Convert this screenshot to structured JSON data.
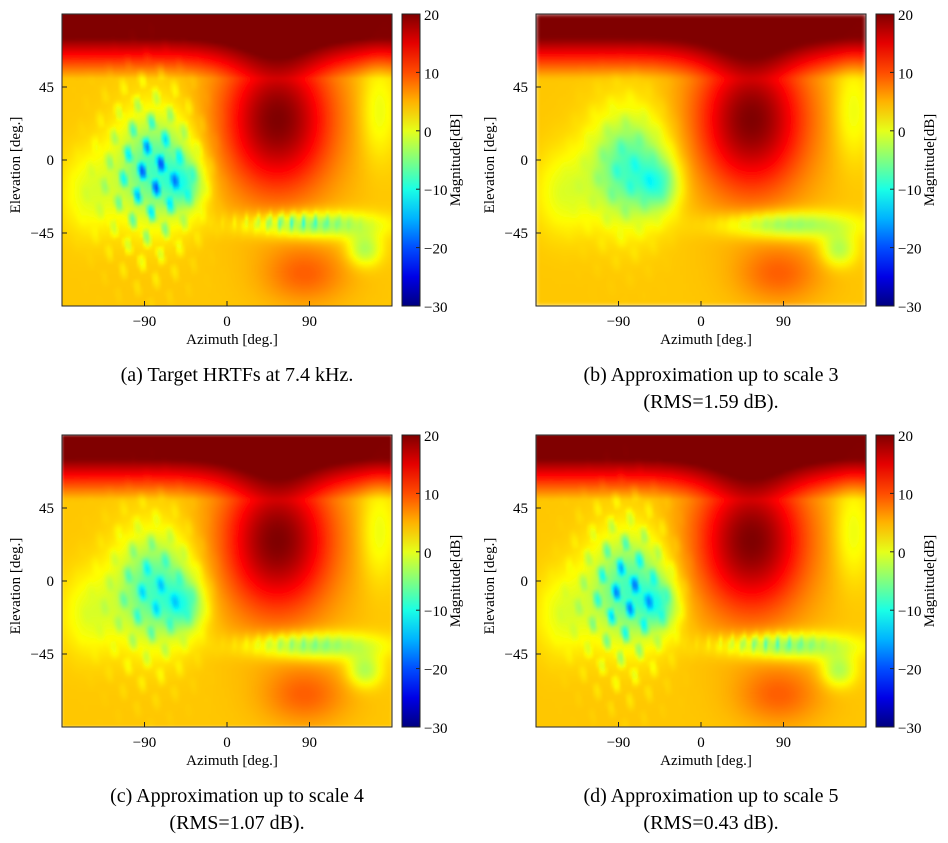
{
  "colorbar": {
    "label": "Magnitude[dB]",
    "ticks": [
      "20",
      "10",
      "0",
      "−10",
      "−20",
      "−30"
    ],
    "range": [
      -30,
      20
    ],
    "colormap": "jet"
  },
  "chart_data": [
    {
      "type": "heatmap",
      "xlabel": "Azimuth [deg.]",
      "ylabel": "Elevation [deg.]",
      "xticks": [
        "−90",
        "0",
        "90"
      ],
      "yticks": [
        "45",
        "0",
        "−45"
      ],
      "xlim": [
        -180,
        180
      ],
      "ylim": [
        -90,
        90
      ],
      "clim": [
        -30,
        20
      ],
      "caption": [
        "(a) Target HRTFs at 7.4 kHz."
      ],
      "detail": 1.0,
      "blur": 0.6
    },
    {
      "type": "heatmap",
      "xlabel": "Azimuth [deg.]",
      "ylabel": "Elevation [deg.]",
      "xticks": [
        "−90",
        "0",
        "90"
      ],
      "yticks": [
        "45",
        "0",
        "−45"
      ],
      "xlim": [
        -180,
        180
      ],
      "ylim": [
        -90,
        90
      ],
      "clim": [
        -30,
        20
      ],
      "caption": [
        "(b) Approximation up to scale 3",
        "(RMS=1.59 dB)."
      ],
      "detail": 0.25,
      "blur": 2.2
    },
    {
      "type": "heatmap",
      "xlabel": "Azimuth [deg.]",
      "ylabel": "Elevation [deg.]",
      "xticks": [
        "−90",
        "0",
        "90"
      ],
      "yticks": [
        "45",
        "0",
        "−45"
      ],
      "xlim": [
        -180,
        180
      ],
      "ylim": [
        -90,
        90
      ],
      "clim": [
        -30,
        20
      ],
      "caption": [
        "(c) Approximation up to scale 4",
        "(RMS=1.07 dB)."
      ],
      "detail": 0.55,
      "blur": 1.3
    },
    {
      "type": "heatmap",
      "xlabel": "Azimuth [deg.]",
      "ylabel": "Elevation [deg.]",
      "xticks": [
        "−90",
        "0",
        "90"
      ],
      "yticks": [
        "45",
        "0",
        "−45"
      ],
      "xlim": [
        -180,
        180
      ],
      "ylim": [
        -90,
        90
      ],
      "clim": [
        -30,
        20
      ],
      "caption": [
        "(d) Approximation up to scale 5",
        "(RMS=0.43 dB)."
      ],
      "detail": 0.85,
      "blur": 0.8
    }
  ]
}
